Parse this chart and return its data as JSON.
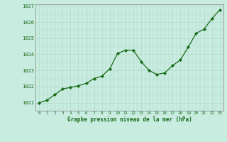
{
  "x": [
    0,
    1,
    2,
    3,
    4,
    5,
    6,
    7,
    8,
    9,
    10,
    11,
    12,
    13,
    14,
    15,
    16,
    17,
    18,
    19,
    20,
    21,
    22,
    23
  ],
  "y": [
    1021.0,
    1021.15,
    1021.5,
    1021.85,
    1021.95,
    1022.05,
    1022.2,
    1022.5,
    1022.65,
    1023.1,
    1024.05,
    1024.25,
    1024.25,
    1023.55,
    1023.0,
    1022.75,
    1022.85,
    1023.3,
    1023.65,
    1024.45,
    1025.3,
    1025.55,
    1026.2,
    1026.75
  ],
  "title": "Graphe pression niveau de la mer (hPa)",
  "ylim": [
    1020.55,
    1027.1
  ],
  "xlim": [
    -0.5,
    23.5
  ],
  "yticks": [
    1021,
    1022,
    1023,
    1024,
    1025,
    1026,
    1027
  ],
  "xticks": [
    0,
    1,
    2,
    3,
    4,
    5,
    6,
    7,
    8,
    9,
    10,
    11,
    12,
    13,
    14,
    15,
    16,
    17,
    18,
    19,
    20,
    21,
    22,
    23
  ],
  "line_color": "#1a6b1a",
  "marker_color": "#1a6b1a",
  "bg_color": "#c8ece0",
  "grid_color": "#b0d8c8",
  "title_color": "#1a6b1a",
  "tick_color": "#1a6b1a",
  "border_color": "#888888"
}
